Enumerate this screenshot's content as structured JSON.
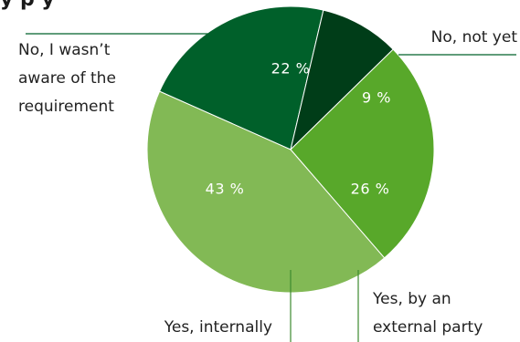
{
  "chart_data": {
    "type": "pie",
    "title_fragment": "y     p  y",
    "slices": [
      {
        "label_lines": [
          "No, I wasn’t",
          "aware of the",
          "requirement"
        ],
        "value": 22,
        "value_label": "22 %",
        "color": "#00602a"
      },
      {
        "label_lines": [
          "No, not yet"
        ],
        "value": 9,
        "value_label": "9 %",
        "color": "#003d18"
      },
      {
        "label_lines": [
          "Yes, by an",
          "external party"
        ],
        "value": 26,
        "value_label": "26 %",
        "color": "#58a82a"
      },
      {
        "label_lines": [
          "Yes, internally"
        ],
        "value": 43,
        "value_label": "43 %",
        "color": "#82b955"
      }
    ]
  }
}
